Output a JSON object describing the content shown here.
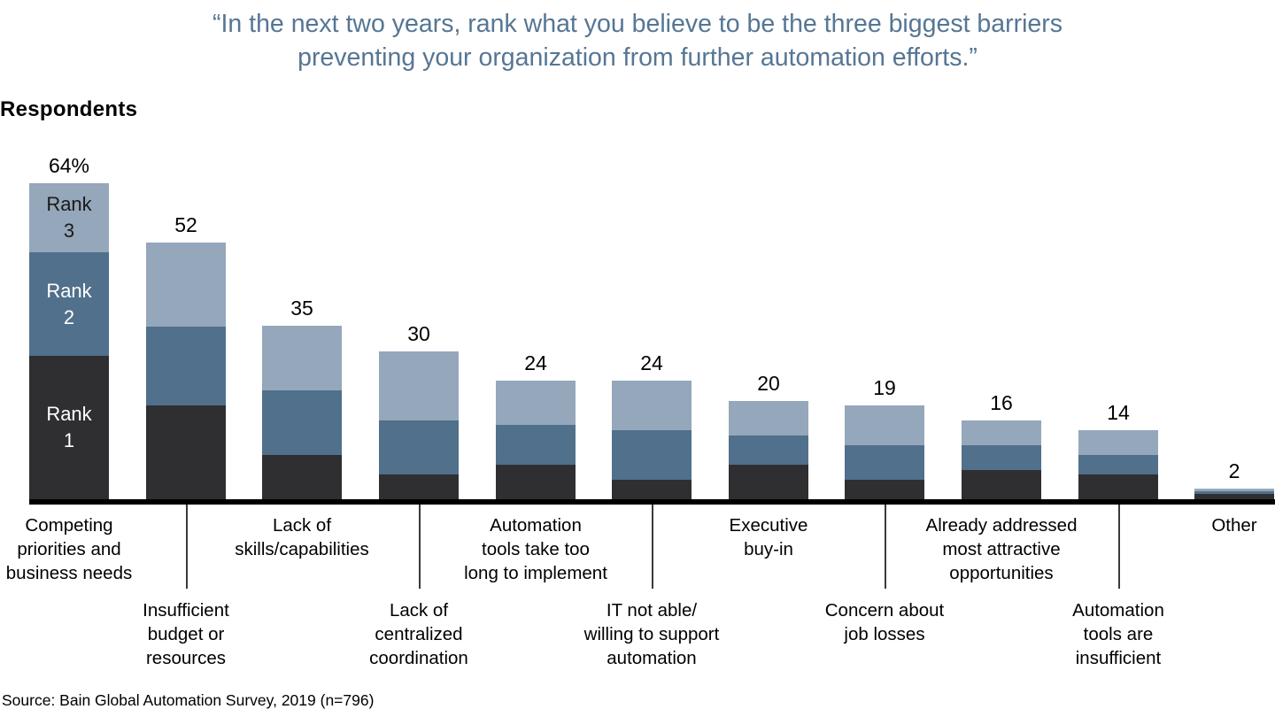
{
  "title": {
    "line1": "“In the next two years, rank what you believe to be the three biggest barriers",
    "line2": "preventing your organization from further automation efforts.”"
  },
  "axis_label": "Respondents",
  "source": "Source: Bain Global Automation Survey, 2019 (n=796)",
  "colors": {
    "rank1": "#2f2f31",
    "rank2": "#50708c",
    "rank3": "#95a7ba",
    "title": "#567694",
    "axis": "#000000",
    "tick": "#3a3a3a",
    "rank3_text": "#1a1a1a",
    "rank12_text": "#ffffff"
  },
  "chart_data": {
    "type": "bar",
    "stacked": true,
    "title": "“In the next two years, rank what you believe to be the three biggest barriers preventing your organization from further automation efforts.”",
    "ylabel": "Respondents",
    "ylim": [
      0,
      70
    ],
    "grid": false,
    "legend_position": "inside-first-bar",
    "rank_labels": {
      "rank1": "Rank\n1",
      "rank2": "Rank\n2",
      "rank3": "Rank\n3"
    },
    "categories": [
      {
        "label": "Competing priorities and business needs",
        "label_lines": "Competing\npriorities and\nbusiness needs",
        "row": 1,
        "total": 64,
        "total_label": "64%",
        "rank1": 29,
        "rank2": 21,
        "rank3": 14
      },
      {
        "label": "Insufficient budget or resources",
        "label_lines": "Insufficient\nbudget or\nresources",
        "row": 2,
        "total": 52,
        "total_label": "52",
        "rank1": 19,
        "rank2": 16,
        "rank3": 17
      },
      {
        "label": "Lack of skills/capabilities",
        "label_lines": "Lack of\nskills/capabilities",
        "row": 1,
        "total": 35,
        "total_label": "35",
        "rank1": 9,
        "rank2": 13,
        "rank3": 13
      },
      {
        "label": "Lack of centralized coordination",
        "label_lines": "Lack of\ncentralized\ncoordination",
        "row": 2,
        "total": 30,
        "total_label": "30",
        "rank1": 5,
        "rank2": 11,
        "rank3": 14
      },
      {
        "label": "Automation tools take too long to implement",
        "label_lines": "Automation\ntools take too\nlong to implement",
        "row": 1,
        "total": 24,
        "total_label": "24",
        "rank1": 7,
        "rank2": 8,
        "rank3": 9
      },
      {
        "label": "IT not able/willing to support automation",
        "label_lines": "IT not able/\nwilling to support\nautomation",
        "row": 2,
        "total": 24,
        "total_label": "24",
        "rank1": 4,
        "rank2": 10,
        "rank3": 10
      },
      {
        "label": "Executive buy-in",
        "label_lines": "Executive\nbuy-in",
        "row": 1,
        "total": 20,
        "total_label": "20",
        "rank1": 7,
        "rank2": 6,
        "rank3": 7
      },
      {
        "label": "Concern about job losses",
        "label_lines": "Concern about\njob losses",
        "row": 2,
        "total": 19,
        "total_label": "19",
        "rank1": 4,
        "rank2": 7,
        "rank3": 8
      },
      {
        "label": "Already addressed most attractive opportunities",
        "label_lines": "Already addressed\nmost attractive\nopportunities",
        "row": 1,
        "total": 16,
        "total_label": "16",
        "rank1": 6,
        "rank2": 5,
        "rank3": 5
      },
      {
        "label": "Automation tools are insufficient",
        "label_lines": "Automation\ntools are\ninsufficient",
        "row": 2,
        "total": 14,
        "total_label": "14",
        "rank1": 5,
        "rank2": 4,
        "rank3": 5
      },
      {
        "label": "Other",
        "label_lines": "Other",
        "row": 1,
        "total": 2,
        "total_label": "2",
        "rank1": 1,
        "rank2": 0.5,
        "rank3": 0.5
      }
    ]
  }
}
